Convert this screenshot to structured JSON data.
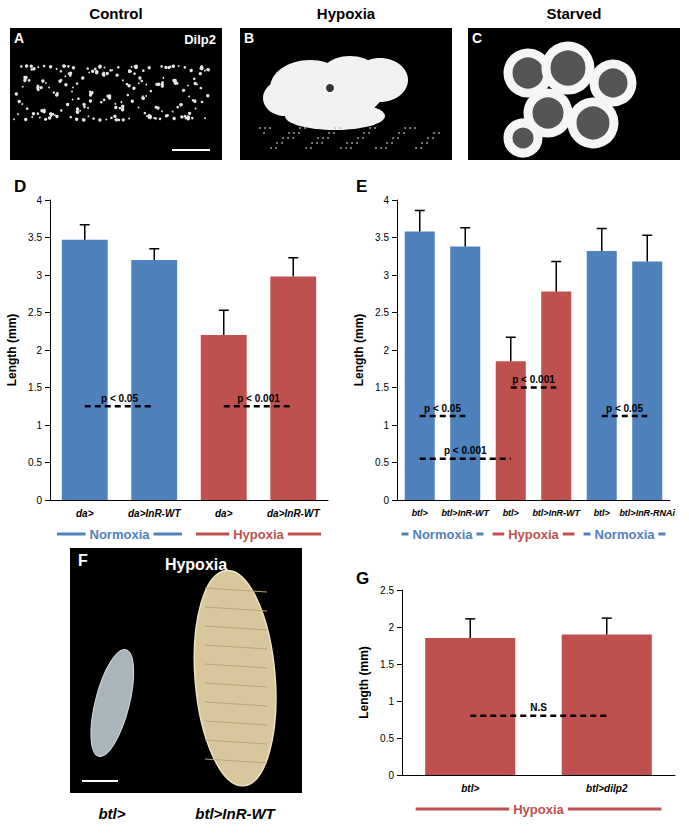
{
  "images": [
    {
      "panel": "A",
      "title": "Control",
      "label": "Dilp2"
    },
    {
      "panel": "B",
      "title": "Hypoxia"
    },
    {
      "panel": "C",
      "title": "Starved"
    },
    {
      "panel": "F",
      "title": "Hypoxia",
      "labels": [
        "btl>",
        "btl>InR-WT"
      ]
    }
  ],
  "chart_data": [
    {
      "panel": "D",
      "type": "bar",
      "ylabel": "Length (mm)",
      "categories": [
        "da>",
        "da>InR-WT",
        "da>",
        "da>InR-WT"
      ],
      "values": [
        3.47,
        3.2,
        2.2,
        2.98
      ],
      "errors": [
        0.2,
        0.15,
        0.33,
        0.25
      ],
      "colors": [
        "#4f81bd",
        "#4f81bd",
        "#c0504d",
        "#c0504d"
      ],
      "ylim": [
        0,
        4
      ],
      "yticks": [
        0,
        0.5,
        1,
        1.5,
        2,
        2.5,
        3,
        3.5,
        4
      ],
      "grid": false,
      "groups": [
        {
          "label": "Normoxia",
          "color": "#4f81bd",
          "from": 0,
          "to": 1
        },
        {
          "label": "Hypoxia",
          "color": "#c0504d",
          "from": 2,
          "to": 3
        }
      ],
      "annotations": [
        {
          "text": "p < 0.05",
          "y": 1.25,
          "from": 0,
          "to": 1
        },
        {
          "text": "p < 0.001",
          "y": 1.25,
          "from": 2,
          "to": 3
        }
      ]
    },
    {
      "panel": "E",
      "type": "bar",
      "ylabel": "Length (mm)",
      "categories": [
        "btl>",
        "btl>InR-WT",
        "btl>",
        "btl>InR-WT",
        "btl>",
        "btl>InR-RNAi"
      ],
      "values": [
        3.58,
        3.38,
        1.85,
        2.78,
        3.32,
        3.18
      ],
      "errors": [
        0.28,
        0.25,
        0.32,
        0.4,
        0.3,
        0.35
      ],
      "colors": [
        "#4f81bd",
        "#4f81bd",
        "#c0504d",
        "#c0504d",
        "#4f81bd",
        "#4f81bd"
      ],
      "ylim": [
        0,
        4
      ],
      "yticks": [
        0,
        0.5,
        1,
        1.5,
        2,
        2.5,
        3,
        3.5,
        4
      ],
      "grid": false,
      "groups": [
        {
          "label": "Normoxia",
          "color": "#4f81bd",
          "from": 0,
          "to": 1
        },
        {
          "label": "Hypoxia",
          "color": "#c0504d",
          "from": 2,
          "to": 3
        },
        {
          "label": "Normoxia",
          "color": "#4f81bd",
          "from": 4,
          "to": 5
        }
      ],
      "annotations": [
        {
          "text": "p < 0.05",
          "y": 1.12,
          "from": 0,
          "to": 1
        },
        {
          "text": "p < 0.001",
          "y": 0.55,
          "from": 0,
          "to": 2
        },
        {
          "text": "p < 0.001",
          "y": 1.5,
          "from": 2,
          "to": 3
        },
        {
          "text": "p < 0.05",
          "y": 1.12,
          "from": 4,
          "to": 5
        }
      ]
    },
    {
      "panel": "G",
      "type": "bar",
      "ylabel": "Length (mm)",
      "categories": [
        "btl>",
        "btl>dilp2"
      ],
      "values": [
        1.85,
        1.9
      ],
      "errors": [
        0.26,
        0.22
      ],
      "colors": [
        "#c0504d",
        "#c0504d"
      ],
      "ylim": [
        0,
        2.5
      ],
      "yticks": [
        0,
        0.5,
        1,
        1.5,
        2,
        2.5
      ],
      "grid": false,
      "groups": [
        {
          "label": "Hypoxia",
          "color": "#c0504d",
          "from": 0,
          "to": 1
        }
      ],
      "annotations": [
        {
          "text": "N.S",
          "y": 0.8,
          "from": 0,
          "to": 1
        }
      ]
    }
  ]
}
